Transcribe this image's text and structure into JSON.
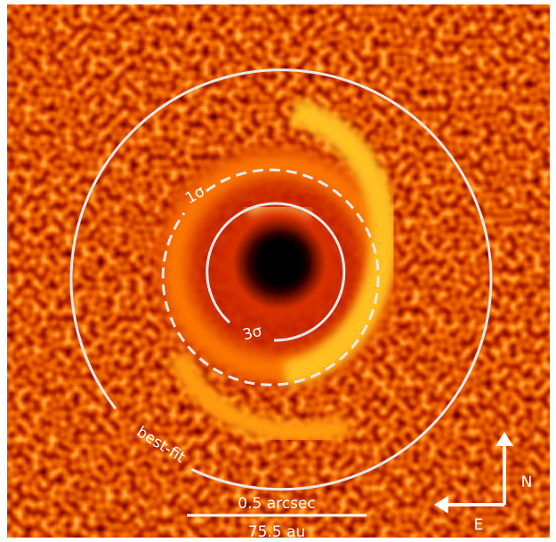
{
  "labels": {
    "sigma1": "1σ",
    "sigma3": "3σ",
    "best_fit": "best-fit"
  },
  "scale_bar": {
    "angular": "0.5 arcsec",
    "physical": "75.5 au"
  },
  "compass": {
    "north": "N",
    "east": "E"
  }
}
